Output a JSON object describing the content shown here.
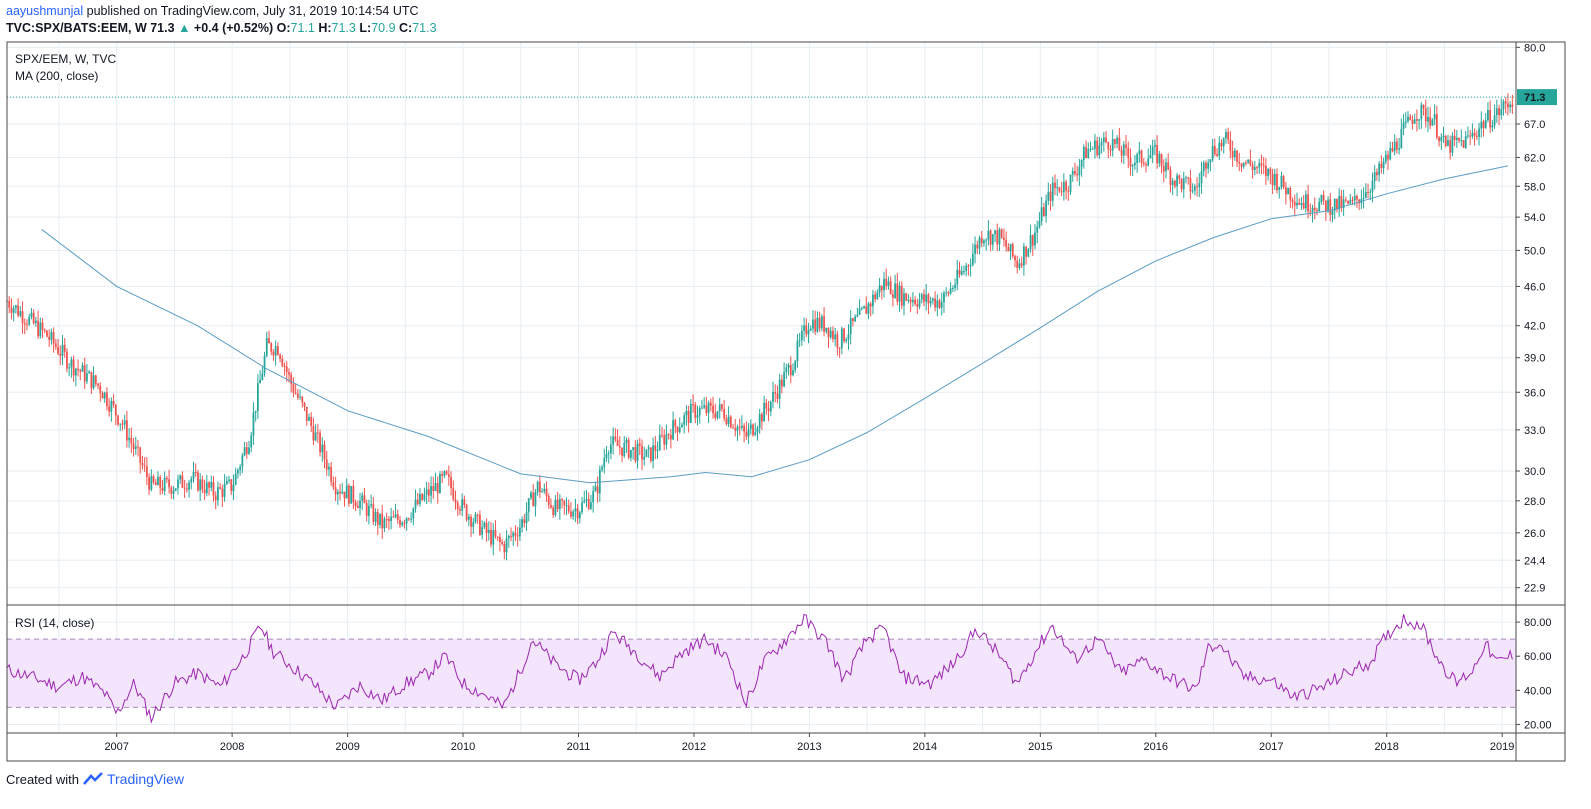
{
  "header": {
    "author": "aayushmunjal",
    "published": " published on TradingView.com, July 31, 2019 10:14:54 UTC",
    "symbol_line": "TVC:SPX/BATS:EEM, W",
    "last_price": "71.3",
    "change_arrow": "▲",
    "change": "+0.4 (+0.52%)",
    "o_label": "O:",
    "o_value": "71.1",
    "h_label": "H:",
    "h_value": "71.3",
    "l_label": "L:",
    "l_value": "70.9",
    "c_label": "C:",
    "c_value": "71.3"
  },
  "legend": {
    "symbol": "SPX/EEM, W, TVC",
    "ma": "MA (200, close)",
    "rsi": "RSI (14, close)"
  },
  "price_badge": "71.3",
  "footer": {
    "created_with": "Created with",
    "brand": "TradingView"
  },
  "colors": {
    "up": "#26a69a",
    "down": "#ef5350",
    "ma": "#5b9cc4",
    "rsi": "#9c27b0",
    "rsi_band": "#f3e5fc",
    "grid": "#e6eef3",
    "accent": "#26a69a"
  },
  "chart_data": [
    {
      "type": "candlestick",
      "title": "SPX/EEM, W, TVC",
      "y_scale": "log",
      "ylim": [
        22,
        81
      ],
      "y_ticks": [
        "80.0",
        "71.3",
        "67.0",
        "62.0",
        "58.0",
        "54.0",
        "50.0",
        "46.0",
        "42.0",
        "39.0",
        "36.0",
        "33.0",
        "30.0",
        "28.0",
        "26.0",
        "24.4",
        "22.9"
      ],
      "x_ticks": [
        "2007",
        "2008",
        "2009",
        "2010",
        "2011",
        "2012",
        "2013",
        "2014",
        "2015",
        "2016",
        "2017",
        "2018",
        "2019"
      ],
      "x_range": [
        2006.55,
        2019.62
      ],
      "last_close": 71.3,
      "price_anchors": [
        {
          "x": 2006.55,
          "y": 44.5
        },
        {
          "x": 2006.9,
          "y": 41.0
        },
        {
          "x": 2007.1,
          "y": 38.5
        },
        {
          "x": 2007.35,
          "y": 36.5
        },
        {
          "x": 2007.55,
          "y": 33.5
        },
        {
          "x": 2007.8,
          "y": 29.0
        },
        {
          "x": 2008.0,
          "y": 29.0
        },
        {
          "x": 2008.15,
          "y": 29.5
        },
        {
          "x": 2008.35,
          "y": 28.5
        },
        {
          "x": 2008.5,
          "y": 29.0
        },
        {
          "x": 2008.65,
          "y": 32.5
        },
        {
          "x": 2008.8,
          "y": 40.0
        },
        {
          "x": 2008.9,
          "y": 40.0
        },
        {
          "x": 2009.0,
          "y": 37.0
        },
        {
          "x": 2009.2,
          "y": 33.0
        },
        {
          "x": 2009.4,
          "y": 29.0
        },
        {
          "x": 2009.6,
          "y": 28.0
        },
        {
          "x": 2009.8,
          "y": 26.5
        },
        {
          "x": 2010.0,
          "y": 27.0
        },
        {
          "x": 2010.2,
          "y": 28.5
        },
        {
          "x": 2010.35,
          "y": 29.5
        },
        {
          "x": 2010.5,
          "y": 27.5
        },
        {
          "x": 2010.7,
          "y": 26.0
        },
        {
          "x": 2010.85,
          "y": 25.2
        },
        {
          "x": 2011.0,
          "y": 26.5
        },
        {
          "x": 2011.15,
          "y": 29.0
        },
        {
          "x": 2011.3,
          "y": 27.5
        },
        {
          "x": 2011.5,
          "y": 27.5
        },
        {
          "x": 2011.65,
          "y": 28.5
        },
        {
          "x": 2011.75,
          "y": 32.0
        },
        {
          "x": 2011.95,
          "y": 31.5
        },
        {
          "x": 2012.1,
          "y": 31.0
        },
        {
          "x": 2012.3,
          "y": 33.0
        },
        {
          "x": 2012.5,
          "y": 34.5
        },
        {
          "x": 2012.75,
          "y": 34.5
        },
        {
          "x": 2012.95,
          "y": 32.5
        },
        {
          "x": 2013.15,
          "y": 35.0
        },
        {
          "x": 2013.35,
          "y": 38.5
        },
        {
          "x": 2013.5,
          "y": 42.5
        },
        {
          "x": 2013.65,
          "y": 42.0
        },
        {
          "x": 2013.75,
          "y": 40.5
        },
        {
          "x": 2013.95,
          "y": 43.0
        },
        {
          "x": 2014.15,
          "y": 46.5
        },
        {
          "x": 2014.3,
          "y": 45.0
        },
        {
          "x": 2014.5,
          "y": 44.5
        },
        {
          "x": 2014.65,
          "y": 44.5
        },
        {
          "x": 2014.85,
          "y": 48.0
        },
        {
          "x": 2015.0,
          "y": 52.0
        },
        {
          "x": 2015.15,
          "y": 51.5
        },
        {
          "x": 2015.3,
          "y": 48.5
        },
        {
          "x": 2015.45,
          "y": 52.0
        },
        {
          "x": 2015.6,
          "y": 57.5
        },
        {
          "x": 2015.75,
          "y": 58.5
        },
        {
          "x": 2015.9,
          "y": 63.0
        },
        {
          "x": 2016.1,
          "y": 64.5
        },
        {
          "x": 2016.3,
          "y": 61.5
        },
        {
          "x": 2016.5,
          "y": 62.5
        },
        {
          "x": 2016.65,
          "y": 59.0
        },
        {
          "x": 2016.85,
          "y": 57.5
        },
        {
          "x": 2016.95,
          "y": 62.5
        },
        {
          "x": 2017.1,
          "y": 64.5
        },
        {
          "x": 2017.25,
          "y": 61.5
        },
        {
          "x": 2017.5,
          "y": 59.5
        },
        {
          "x": 2017.75,
          "y": 56.0
        },
        {
          "x": 2018.0,
          "y": 55.5
        },
        {
          "x": 2018.2,
          "y": 55.5
        },
        {
          "x": 2018.4,
          "y": 59.0
        },
        {
          "x": 2018.6,
          "y": 64.5
        },
        {
          "x": 2018.75,
          "y": 69.0
        },
        {
          "x": 2018.9,
          "y": 68.0
        },
        {
          "x": 2019.0,
          "y": 63.5
        },
        {
          "x": 2019.2,
          "y": 64.5
        },
        {
          "x": 2019.35,
          "y": 67.5
        },
        {
          "x": 2019.45,
          "y": 68.5
        },
        {
          "x": 2019.6,
          "y": 71.3
        }
      ]
    },
    {
      "type": "line",
      "name": "MA (200, close)",
      "points": [
        {
          "x": 2006.85,
          "y": 52.5
        },
        {
          "x": 2007.5,
          "y": 46.0
        },
        {
          "x": 2008.2,
          "y": 42.0
        },
        {
          "x": 2008.8,
          "y": 38.0
        },
        {
          "x": 2009.5,
          "y": 34.5
        },
        {
          "x": 2010.2,
          "y": 32.5
        },
        {
          "x": 2011.0,
          "y": 29.8
        },
        {
          "x": 2011.6,
          "y": 29.2
        },
        {
          "x": 2012.3,
          "y": 29.6
        },
        {
          "x": 2012.6,
          "y": 29.9
        },
        {
          "x": 2013.0,
          "y": 29.6
        },
        {
          "x": 2013.5,
          "y": 30.8
        },
        {
          "x": 2014.0,
          "y": 32.8
        },
        {
          "x": 2014.5,
          "y": 35.5
        },
        {
          "x": 2015.0,
          "y": 38.5
        },
        {
          "x": 2015.5,
          "y": 41.8
        },
        {
          "x": 2016.0,
          "y": 45.5
        },
        {
          "x": 2016.5,
          "y": 48.8
        },
        {
          "x": 2017.0,
          "y": 51.5
        },
        {
          "x": 2017.5,
          "y": 53.8
        },
        {
          "x": 2018.0,
          "y": 54.8
        },
        {
          "x": 2018.5,
          "y": 57.0
        },
        {
          "x": 2019.0,
          "y": 59.0
        },
        {
          "x": 2019.55,
          "y": 60.8
        }
      ]
    },
    {
      "type": "line",
      "name": "RSI (14, close)",
      "ylim": [
        15,
        90
      ],
      "y_ticks": [
        "80.00",
        "60.00",
        "40.00",
        "20.00"
      ],
      "bands": [
        30,
        70
      ],
      "points": [
        {
          "x": 2006.55,
          "y": 52
        },
        {
          "x": 2006.8,
          "y": 47
        },
        {
          "x": 2007.0,
          "y": 42
        },
        {
          "x": 2007.2,
          "y": 48
        },
        {
          "x": 2007.4,
          "y": 38
        },
        {
          "x": 2007.5,
          "y": 26
        },
        {
          "x": 2007.65,
          "y": 44
        },
        {
          "x": 2007.8,
          "y": 24
        },
        {
          "x": 2008.0,
          "y": 44
        },
        {
          "x": 2008.2,
          "y": 50
        },
        {
          "x": 2008.4,
          "y": 42
        },
        {
          "x": 2008.6,
          "y": 60
        },
        {
          "x": 2008.75,
          "y": 78
        },
        {
          "x": 2008.85,
          "y": 63
        },
        {
          "x": 2009.0,
          "y": 55
        },
        {
          "x": 2009.2,
          "y": 44
        },
        {
          "x": 2009.4,
          "y": 30
        },
        {
          "x": 2009.6,
          "y": 43
        },
        {
          "x": 2009.8,
          "y": 34
        },
        {
          "x": 2010.0,
          "y": 44
        },
        {
          "x": 2010.2,
          "y": 50
        },
        {
          "x": 2010.35,
          "y": 60
        },
        {
          "x": 2010.5,
          "y": 44
        },
        {
          "x": 2010.7,
          "y": 37
        },
        {
          "x": 2010.85,
          "y": 30
        },
        {
          "x": 2011.0,
          "y": 52
        },
        {
          "x": 2011.1,
          "y": 70
        },
        {
          "x": 2011.3,
          "y": 55
        },
        {
          "x": 2011.5,
          "y": 46
        },
        {
          "x": 2011.65,
          "y": 56
        },
        {
          "x": 2011.8,
          "y": 74
        },
        {
          "x": 2012.0,
          "y": 62
        },
        {
          "x": 2012.2,
          "y": 48
        },
        {
          "x": 2012.4,
          "y": 62
        },
        {
          "x": 2012.6,
          "y": 70
        },
        {
          "x": 2012.8,
          "y": 58
        },
        {
          "x": 2012.95,
          "y": 32
        },
        {
          "x": 2013.1,
          "y": 56
        },
        {
          "x": 2013.3,
          "y": 70
        },
        {
          "x": 2013.45,
          "y": 82
        },
        {
          "x": 2013.65,
          "y": 68
        },
        {
          "x": 2013.8,
          "y": 46
        },
        {
          "x": 2014.0,
          "y": 70
        },
        {
          "x": 2014.15,
          "y": 76
        },
        {
          "x": 2014.3,
          "y": 48
        },
        {
          "x": 2014.55,
          "y": 44
        },
        {
          "x": 2014.75,
          "y": 56
        },
        {
          "x": 2014.95,
          "y": 76
        },
        {
          "x": 2015.15,
          "y": 60
        },
        {
          "x": 2015.3,
          "y": 44
        },
        {
          "x": 2015.45,
          "y": 62
        },
        {
          "x": 2015.6,
          "y": 78
        },
        {
          "x": 2015.8,
          "y": 58
        },
        {
          "x": 2016.0,
          "y": 70
        },
        {
          "x": 2016.2,
          "y": 50
        },
        {
          "x": 2016.4,
          "y": 58
        },
        {
          "x": 2016.6,
          "y": 48
        },
        {
          "x": 2016.85,
          "y": 40
        },
        {
          "x": 2016.95,
          "y": 64
        },
        {
          "x": 2017.05,
          "y": 68
        },
        {
          "x": 2017.25,
          "y": 48
        },
        {
          "x": 2017.5,
          "y": 46
        },
        {
          "x": 2017.7,
          "y": 36
        },
        {
          "x": 2017.95,
          "y": 42
        },
        {
          "x": 2018.15,
          "y": 50
        },
        {
          "x": 2018.35,
          "y": 56
        },
        {
          "x": 2018.5,
          "y": 72
        },
        {
          "x": 2018.65,
          "y": 82
        },
        {
          "x": 2018.8,
          "y": 78
        },
        {
          "x": 2018.95,
          "y": 58
        },
        {
          "x": 2019.1,
          "y": 44
        },
        {
          "x": 2019.25,
          "y": 52
        },
        {
          "x": 2019.35,
          "y": 68
        },
        {
          "x": 2019.45,
          "y": 56
        },
        {
          "x": 2019.6,
          "y": 61
        }
      ]
    }
  ]
}
